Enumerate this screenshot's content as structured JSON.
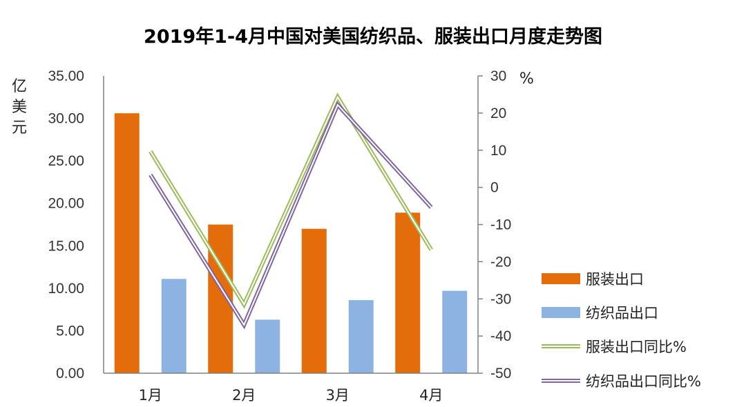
{
  "chart_data": {
    "type": "bar",
    "title": "2019年1-4月中国对美国纺织品、服装出口月度走势图",
    "categories": [
      "1月",
      "2月",
      "3月",
      "4月"
    ],
    "ylabel_left": "亿美元",
    "ylabel_right": "%",
    "ylim_left": [
      0,
      35
    ],
    "ylim_right": [
      -50,
      30
    ],
    "yticks_left": [
      "0.00",
      "5.00",
      "10.00",
      "15.00",
      "20.00",
      "25.00",
      "30.00",
      "35.00"
    ],
    "yticks_right": [
      "-50",
      "-40",
      "-30",
      "-20",
      "-10",
      "0",
      "10",
      "20",
      "30"
    ],
    "series": [
      {
        "name": "服装出口",
        "kind": "bar",
        "axis": "left",
        "color": "#E46C0A",
        "values": [
          30.6,
          17.5,
          17.0,
          18.9
        ]
      },
      {
        "name": "纺织品出口",
        "kind": "bar",
        "axis": "left",
        "color": "#8DB3E2",
        "values": [
          11.1,
          6.3,
          8.6,
          9.7
        ]
      },
      {
        "name": "服装出口同比%",
        "kind": "line",
        "axis": "right",
        "color": "#9BBB59",
        "values": [
          9.7,
          -31.5,
          24.3,
          -16.8
        ]
      },
      {
        "name": "纺织品出口同比%",
        "kind": "line",
        "axis": "right",
        "color": "#8064A2",
        "values": [
          3.4,
          -37.0,
          22.2,
          -5.4
        ]
      }
    ],
    "legend_position": "right",
    "grid": false
  }
}
